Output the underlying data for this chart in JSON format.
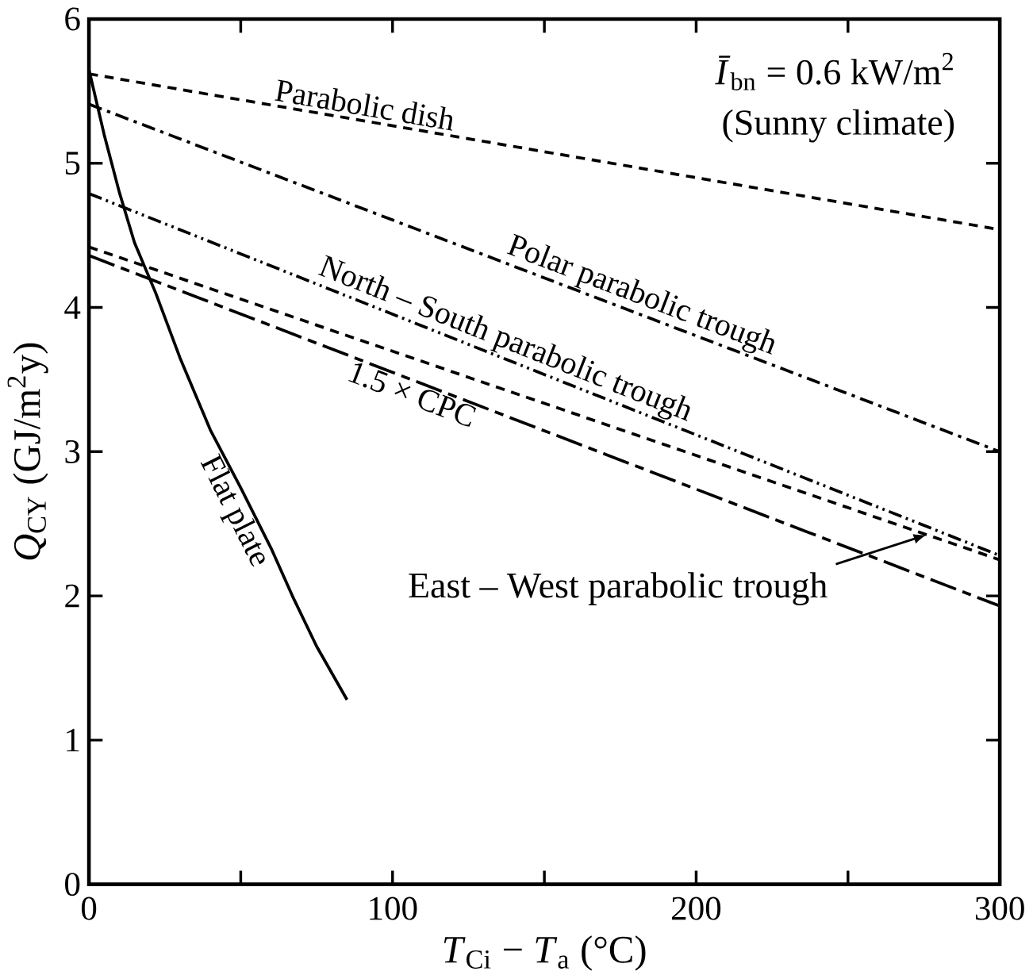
{
  "chart_data": {
    "type": "line",
    "xlabel": "*T*$_{Ci}$ − *T*$_{a}$ (°C)",
    "ylabel": "*Q*$_{CY}$ (GJ/m$^{2}$y)",
    "annotations": [
      "*Ī*$_{bn}$ = 0.6 kW/m$^{2}$",
      "(Sunny climate)"
    ],
    "xlim": [
      0,
      300
    ],
    "ylim": [
      0,
      6
    ],
    "xticks": [
      0,
      {
        "value": 50,
        "label": null
      },
      100,
      {
        "value": 150,
        "label": null
      },
      200,
      {
        "value": 250,
        "label": null
      },
      300
    ],
    "yticks": [
      0,
      1,
      2,
      3,
      4,
      5,
      6
    ],
    "legend": false,
    "grid": false,
    "series": [
      {
        "name": "Parabolic dish",
        "color": "#000000",
        "line_style": "dashed",
        "x": [
          0,
          300
        ],
        "values": [
          5.62,
          4.54
        ]
      },
      {
        "name": "Polar parabolic trough",
        "color": "#000000",
        "line_style": "dashdot",
        "x": [
          0,
          300
        ],
        "values": [
          5.41,
          3.0
        ]
      },
      {
        "name": "North – South parabolic trough",
        "color": "#000000",
        "line_style": "dashdotdot",
        "x": [
          0,
          300
        ],
        "values": [
          4.79,
          2.28
        ]
      },
      {
        "name": "East – West  parabolic trough",
        "color": "#000000",
        "line_style": "dashed",
        "x": [
          0,
          300
        ],
        "values": [
          4.42,
          2.25
        ]
      },
      {
        "name": "1.5 × CPC",
        "color": "#000000",
        "line_style": "longdash",
        "x": [
          0,
          300
        ],
        "values": [
          4.36,
          1.93
        ]
      },
      {
        "name": "Flat plate",
        "color": "#000000",
        "line_style": "solid",
        "x": [
          0,
          5,
          10,
          15,
          22,
          30,
          40,
          50,
          60,
          67,
          75,
          85
        ],
        "values": [
          5.65,
          5.2,
          4.8,
          4.45,
          4.1,
          3.65,
          3.15,
          2.75,
          2.33,
          2.0,
          1.65,
          1.28
        ]
      }
    ]
  }
}
